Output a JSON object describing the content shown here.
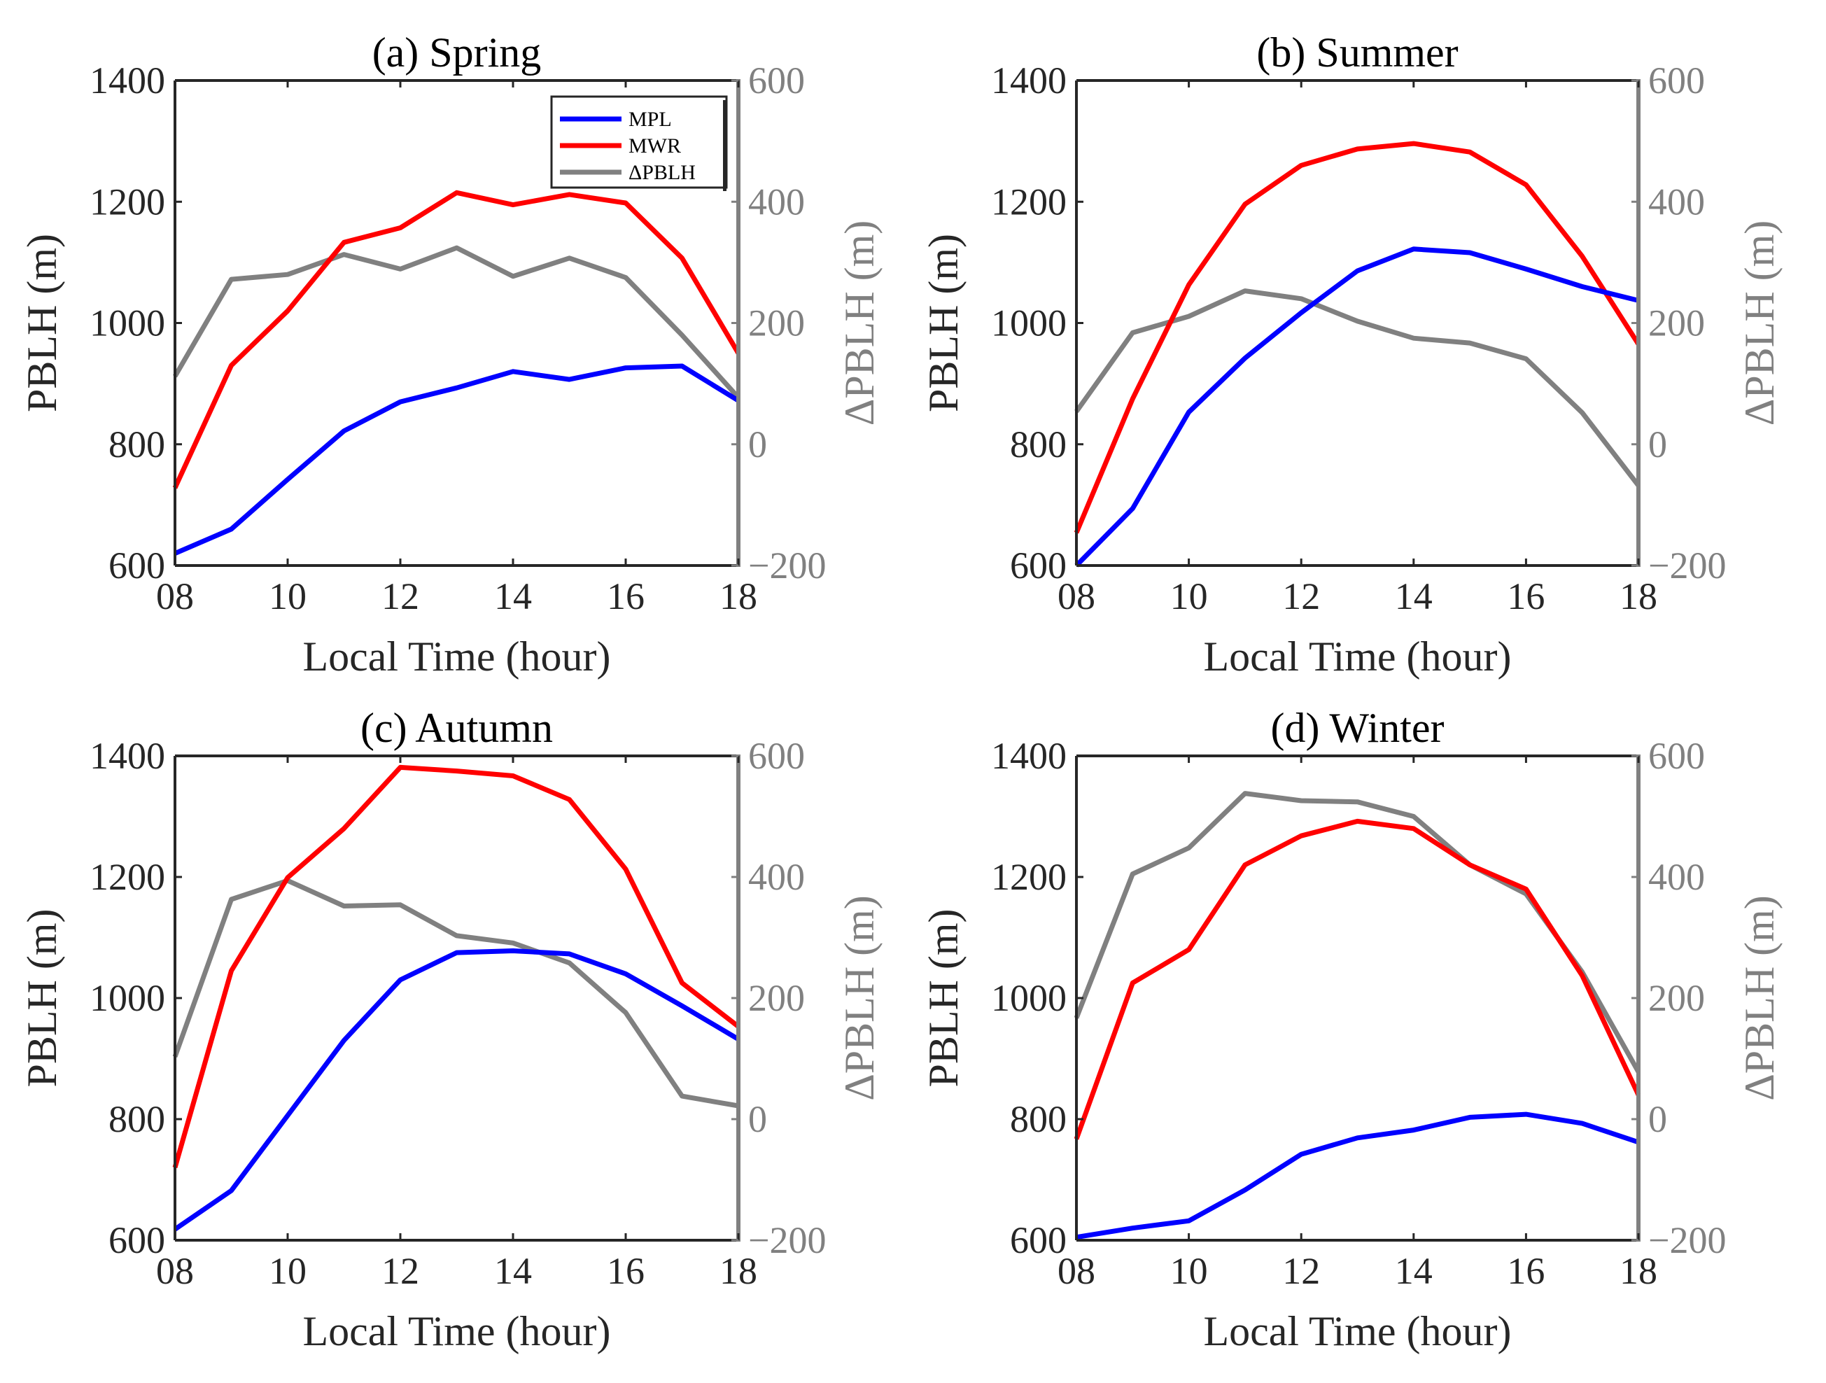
{
  "figure": {
    "legend": [
      {
        "label": "MPL",
        "color": "#0000ff"
      },
      {
        "label": "MWR",
        "color": "#ff0000"
      },
      {
        "label": "ΔPBLH",
        "color": "#808080"
      }
    ]
  },
  "chart_data": [
    {
      "type": "line",
      "title": "(a) Spring",
      "xlabel": "Local Time (hour)",
      "ylabel": "PBLH (m)",
      "y2label": "ΔPBLH (m)",
      "x": [
        8,
        9,
        10,
        11,
        12,
        13,
        14,
        15,
        16,
        17,
        18
      ],
      "xlim": [
        8,
        18
      ],
      "xticks": [
        "08",
        "10",
        "12",
        "14",
        "16",
        "18"
      ],
      "ylim": [
        600,
        1400
      ],
      "yticks": [
        "600",
        "800",
        "1000",
        "1200",
        "1400"
      ],
      "y2lim": [
        -200,
        600
      ],
      "y2ticks": [
        "−200",
        "0",
        "200",
        "400",
        "600"
      ],
      "legend_position": "top-right",
      "series": [
        {
          "name": "MPL",
          "axis": "left",
          "color": "#0000ff",
          "values": [
            620,
            660,
            742,
            822,
            870,
            893,
            920,
            907,
            926,
            929,
            872
          ]
        },
        {
          "name": "MWR",
          "axis": "left",
          "color": "#ff0000",
          "values": [
            728,
            930,
            1020,
            1133,
            1157,
            1215,
            1195,
            1212,
            1198,
            1107,
            950
          ]
        },
        {
          "name": "ΔPBLH",
          "axis": "right",
          "color": "#808080",
          "values": [
            112,
            272,
            280,
            313,
            289,
            324,
            277,
            307,
            275,
            180,
            77
          ]
        }
      ]
    },
    {
      "type": "line",
      "title": "(b) Summer",
      "xlabel": "Local Time (hour)",
      "ylabel": "PBLH (m)",
      "y2label": "ΔPBLH (m)",
      "x": [
        8,
        9,
        10,
        11,
        12,
        13,
        14,
        15,
        16,
        17,
        18
      ],
      "xlim": [
        8,
        18
      ],
      "xticks": [
        "08",
        "10",
        "12",
        "14",
        "16",
        "18"
      ],
      "ylim": [
        600,
        1400
      ],
      "yticks": [
        "600",
        "800",
        "1000",
        "1200",
        "1400"
      ],
      "y2lim": [
        -200,
        600
      ],
      "y2ticks": [
        "−200",
        "0",
        "200",
        "400",
        "600"
      ],
      "series": [
        {
          "name": "MPL",
          "axis": "left",
          "color": "#0000ff",
          "values": [
            600,
            694,
            853,
            942,
            1017,
            1086,
            1122,
            1116,
            1089,
            1060,
            1037
          ]
        },
        {
          "name": "MWR",
          "axis": "left",
          "color": "#ff0000",
          "values": [
            654,
            875,
            1063,
            1196,
            1260,
            1287,
            1296,
            1282,
            1228,
            1110,
            965
          ]
        },
        {
          "name": "ΔPBLH",
          "axis": "right",
          "color": "#808080",
          "values": [
            54,
            184,
            211,
            253,
            240,
            203,
            175,
            167,
            141,
            52,
            -68
          ]
        }
      ]
    },
    {
      "type": "line",
      "title": "(c) Autumn",
      "xlabel": "Local Time (hour)",
      "ylabel": "PBLH (m)",
      "y2label": "ΔPBLH (m)",
      "x": [
        8,
        9,
        10,
        11,
        12,
        13,
        14,
        15,
        16,
        17,
        18
      ],
      "xlim": [
        8,
        18
      ],
      "xticks": [
        "08",
        "10",
        "12",
        "14",
        "16",
        "18"
      ],
      "ylim": [
        600,
        1400
      ],
      "yticks": [
        "600",
        "800",
        "1000",
        "1200",
        "1400"
      ],
      "y2lim": [
        -200,
        600
      ],
      "y2ticks": [
        "−200",
        "0",
        "200",
        "400",
        "600"
      ],
      "series": [
        {
          "name": "MPL",
          "axis": "left",
          "color": "#0000ff",
          "values": [
            618,
            682,
            806,
            930,
            1030,
            1075,
            1078,
            1073,
            1040,
            987,
            932
          ]
        },
        {
          "name": "MWR",
          "axis": "left",
          "color": "#ff0000",
          "values": [
            720,
            1045,
            1199,
            1280,
            1381,
            1375,
            1367,
            1328,
            1213,
            1025,
            953
          ]
        },
        {
          "name": "ΔPBLH",
          "axis": "right",
          "color": "#808080",
          "values": [
            103,
            363,
            394,
            352,
            354,
            303,
            291,
            258,
            176,
            38,
            22
          ]
        }
      ]
    },
    {
      "type": "line",
      "title": "(d) Winter",
      "xlabel": "Local Time (hour)",
      "ylabel": "PBLH (m)",
      "y2label": "ΔPBLH (m)",
      "x": [
        8,
        9,
        10,
        11,
        12,
        13,
        14,
        15,
        16,
        17,
        18
      ],
      "xlim": [
        8,
        18
      ],
      "xticks": [
        "08",
        "10",
        "12",
        "14",
        "16",
        "18"
      ],
      "ylim": [
        600,
        1400
      ],
      "yticks": [
        "600",
        "800",
        "1000",
        "1200",
        "1400"
      ],
      "y2lim": [
        -200,
        600
      ],
      "y2ticks": [
        "−200",
        "0",
        "200",
        "400",
        "600"
      ],
      "series": [
        {
          "name": "MPL",
          "axis": "left",
          "color": "#0000ff",
          "values": [
            605,
            620,
            632,
            683,
            742,
            769,
            782,
            803,
            808,
            793,
            762
          ]
        },
        {
          "name": "MWR",
          "axis": "left",
          "color": "#ff0000",
          "values": [
            767,
            1025,
            1080,
            1220,
            1268,
            1292,
            1280,
            1220,
            1180,
            1037,
            840
          ]
        },
        {
          "name": "ΔPBLH",
          "axis": "right",
          "color": "#808080",
          "values": [
            167,
            405,
            448,
            538,
            526,
            524,
            500,
            420,
            372,
            243,
            78
          ]
        }
      ]
    }
  ]
}
